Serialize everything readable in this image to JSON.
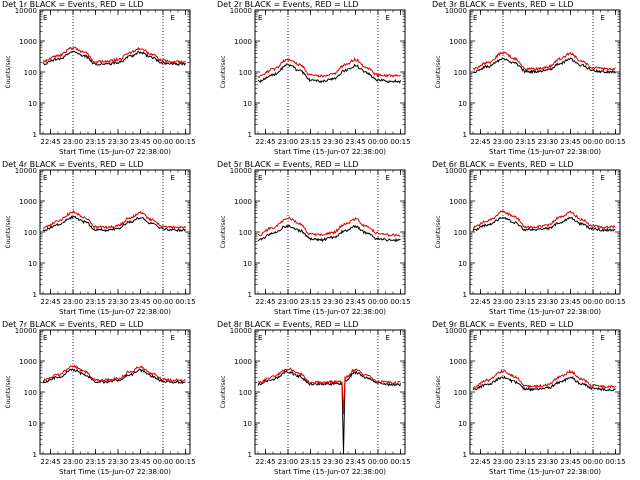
{
  "figure": {
    "x_ticks": [
      "22:45",
      "23:00",
      "23:15",
      "23:30",
      "23:45",
      "00:00",
      "00:15"
    ],
    "y_ticks": [
      "10000",
      "1000",
      "100",
      "10",
      "1"
    ],
    "ylabel": "Counts/sec",
    "xlabel": "Start Time (15-Jun-07 22:38:00)",
    "marker": "E"
  },
  "colors": {
    "events": "#000000",
    "lld": "#dd0000"
  },
  "chart_data": [
    {
      "type": "line",
      "title": "Det 1r BLACK = Events, RED = LLD",
      "xlabel": "Start Time (15-Jun-07 22:38:00)",
      "ylabel": "Counts/sec",
      "yscale": "log",
      "ylim": [
        1,
        10000
      ],
      "xlim": [
        "22:38",
        "00:18"
      ],
      "grid": false,
      "marker": "E",
      "series": [
        {
          "name": "Events",
          "x": [
            "22:40",
            "22:50",
            "23:00",
            "23:08",
            "23:15",
            "23:22",
            "23:30",
            "23:38",
            "23:45",
            "23:52",
            "00:00",
            "00:08",
            "00:15"
          ],
          "values": [
            180,
            260,
            450,
            320,
            180,
            175,
            200,
            320,
            440,
            300,
            190,
            180,
            180
          ]
        },
        {
          "name": "LLD",
          "x": [
            "22:40",
            "22:50",
            "23:00",
            "23:08",
            "23:15",
            "23:22",
            "23:30",
            "23:38",
            "23:45",
            "23:52",
            "00:00",
            "00:08",
            "00:15"
          ],
          "values": [
            220,
            330,
            600,
            420,
            220,
            215,
            250,
            420,
            580,
            380,
            230,
            215,
            210
          ]
        }
      ]
    },
    {
      "type": "line",
      "title": "Det 2r BLACK = Events, RED = LLD",
      "xlabel": "Start Time (15-Jun-07 22:38:00)",
      "ylabel": "Counts/sec",
      "yscale": "log",
      "ylim": [
        1,
        10000
      ],
      "xlim": [
        "22:38",
        "00:18"
      ],
      "grid": false,
      "marker": "E",
      "series": [
        {
          "name": "Events",
          "x": [
            "22:40",
            "22:50",
            "23:00",
            "23:08",
            "23:15",
            "23:22",
            "23:30",
            "23:38",
            "23:45",
            "23:52",
            "00:00",
            "00:08",
            "00:15"
          ],
          "values": [
            50,
            80,
            170,
            110,
            55,
            50,
            60,
            110,
            160,
            95,
            55,
            50,
            50
          ]
        },
        {
          "name": "LLD",
          "x": [
            "22:40",
            "22:50",
            "23:00",
            "23:08",
            "23:15",
            "23:22",
            "23:30",
            "23:38",
            "23:45",
            "23:52",
            "00:00",
            "00:08",
            "00:15"
          ],
          "values": [
            70,
            120,
            260,
            170,
            80,
            75,
            85,
            170,
            250,
            140,
            80,
            75,
            75
          ]
        }
      ]
    },
    {
      "type": "line",
      "title": "Det 3r BLACK = Events, RED = LLD",
      "xlabel": "Start Time (15-Jun-07 22:38:00)",
      "ylabel": "Counts/sec",
      "yscale": "log",
      "ylim": [
        1,
        10000
      ],
      "xlim": [
        "22:38",
        "00:18"
      ],
      "grid": false,
      "marker": "E",
      "series": [
        {
          "name": "Events",
          "x": [
            "22:40",
            "22:50",
            "23:00",
            "23:08",
            "23:15",
            "23:22",
            "23:30",
            "23:38",
            "23:45",
            "23:52",
            "00:00",
            "00:08",
            "00:15"
          ],
          "values": [
            100,
            150,
            270,
            190,
            105,
            100,
            115,
            190,
            260,
            170,
            110,
            100,
            100
          ]
        },
        {
          "name": "LLD",
          "x": [
            "22:40",
            "22:50",
            "23:00",
            "23:08",
            "23:15",
            "23:22",
            "23:30",
            "23:38",
            "23:45",
            "23:52",
            "00:00",
            "00:08",
            "00:15"
          ],
          "values": [
            125,
            200,
            420,
            270,
            130,
            125,
            145,
            270,
            400,
            230,
            140,
            125,
            125
          ]
        }
      ]
    },
    {
      "type": "line",
      "title": "Det 4r BLACK = Events, RED = LLD",
      "xlabel": "Start Time (15-Jun-07 22:38:00)",
      "ylabel": "Counts/sec",
      "yscale": "log",
      "ylim": [
        1,
        10000
      ],
      "xlim": [
        "22:38",
        "00:18"
      ],
      "grid": false,
      "marker": "E",
      "series": [
        {
          "name": "Events",
          "x": [
            "22:40",
            "22:50",
            "23:00",
            "23:08",
            "23:15",
            "23:22",
            "23:30",
            "23:38",
            "23:45",
            "23:52",
            "00:00",
            "00:08",
            "00:15"
          ],
          "values": [
            110,
            170,
            300,
            210,
            120,
            115,
            130,
            210,
            290,
            190,
            125,
            115,
            115
          ]
        },
        {
          "name": "LLD",
          "x": [
            "22:40",
            "22:50",
            "23:00",
            "23:08",
            "23:15",
            "23:22",
            "23:30",
            "23:38",
            "23:45",
            "23:52",
            "00:00",
            "00:08",
            "00:15"
          ],
          "values": [
            135,
            220,
            440,
            290,
            145,
            140,
            160,
            290,
            420,
            250,
            150,
            140,
            140
          ]
        }
      ]
    },
    {
      "type": "line",
      "title": "Det 5r BLACK = Events, RED = LLD",
      "xlabel": "Start Time (15-Jun-07 22:38:00)",
      "ylabel": "Counts/sec",
      "yscale": "log",
      "ylim": [
        1,
        10000
      ],
      "xlim": [
        "22:38",
        "00:18"
      ],
      "grid": false,
      "marker": "E",
      "series": [
        {
          "name": "Events",
          "x": [
            "22:40",
            "22:50",
            "23:00",
            "23:08",
            "23:15",
            "23:22",
            "23:30",
            "23:38",
            "23:45",
            "23:52",
            "00:00",
            "00:08",
            "00:15"
          ],
          "values": [
            55,
            90,
            160,
            110,
            60,
            55,
            65,
            110,
            150,
            95,
            60,
            55,
            55
          ]
        },
        {
          "name": "LLD",
          "x": [
            "22:40",
            "22:50",
            "23:00",
            "23:08",
            "23:15",
            "23:22",
            "23:30",
            "23:38",
            "23:45",
            "23:52",
            "00:00",
            "00:08",
            "00:15"
          ],
          "values": [
            80,
            140,
            280,
            180,
            85,
            80,
            95,
            180,
            260,
            150,
            90,
            80,
            80
          ]
        }
      ]
    },
    {
      "type": "line",
      "title": "Det 6r BLACK = Events, RED = LLD",
      "xlabel": "Start Time (15-Jun-07 22:38:00)",
      "ylabel": "Counts/sec",
      "yscale": "log",
      "ylim": [
        1,
        10000
      ],
      "xlim": [
        "22:38",
        "00:18"
      ],
      "grid": false,
      "marker": "E",
      "series": [
        {
          "name": "Events",
          "x": [
            "22:40",
            "22:50",
            "23:00",
            "23:08",
            "23:15",
            "23:22",
            "23:30",
            "23:38",
            "23:45",
            "23:52",
            "00:00",
            "00:08",
            "00:15"
          ],
          "values": [
            115,
            170,
            290,
            200,
            120,
            115,
            130,
            200,
            280,
            185,
            125,
            115,
            115
          ]
        },
        {
          "name": "LLD",
          "x": [
            "22:40",
            "22:50",
            "23:00",
            "23:08",
            "23:15",
            "23:22",
            "23:30",
            "23:38",
            "23:45",
            "23:52",
            "00:00",
            "00:08",
            "00:15"
          ],
          "values": [
            140,
            230,
            450,
            300,
            150,
            145,
            165,
            300,
            430,
            260,
            155,
            145,
            145
          ]
        }
      ]
    },
    {
      "type": "line",
      "title": "Det 7r BLACK = Events, RED = LLD",
      "xlabel": "Start Time (15-Jun-07 22:38:00)",
      "ylabel": "Counts/sec",
      "yscale": "log",
      "ylim": [
        1,
        10000
      ],
      "xlim": [
        "22:38",
        "00:18"
      ],
      "grid": false,
      "marker": "E",
      "series": [
        {
          "name": "Events",
          "x": [
            "22:40",
            "22:50",
            "23:00",
            "23:08",
            "23:15",
            "23:22",
            "23:30",
            "23:38",
            "23:45",
            "23:52",
            "00:00",
            "00:08",
            "00:15"
          ],
          "values": [
            210,
            300,
            520,
            360,
            215,
            210,
            235,
            360,
            500,
            330,
            225,
            210,
            210
          ]
        },
        {
          "name": "LLD",
          "x": [
            "22:40",
            "22:50",
            "23:00",
            "23:08",
            "23:15",
            "23:22",
            "23:30",
            "23:38",
            "23:45",
            "23:52",
            "00:00",
            "00:08",
            "00:15"
          ],
          "values": [
            240,
            360,
            680,
            450,
            245,
            240,
            270,
            450,
            650,
            400,
            255,
            240,
            240
          ]
        }
      ]
    },
    {
      "type": "line",
      "title": "Det 8r BLACK = Events, RED = LLD",
      "xlabel": "Start Time (15-Jun-07 22:38:00)",
      "ylabel": "Counts/sec",
      "yscale": "log",
      "ylim": [
        1,
        10000
      ],
      "xlim": [
        "22:38",
        "00:18"
      ],
      "grid": false,
      "marker": "E",
      "series": [
        {
          "name": "Events",
          "x": [
            "22:40",
            "22:50",
            "23:00",
            "23:08",
            "23:15",
            "23:22",
            "23:30",
            "23:36",
            "23:37",
            "23:38",
            "23:45",
            "23:52",
            "00:00",
            "00:08",
            "00:15"
          ],
          "values": [
            175,
            260,
            450,
            310,
            180,
            175,
            185,
            185,
            1,
            240,
            430,
            290,
            190,
            175,
            175
          ]
        },
        {
          "name": "LLD",
          "x": [
            "22:40",
            "22:50",
            "23:00",
            "23:08",
            "23:15",
            "23:22",
            "23:30",
            "23:36",
            "23:37",
            "23:38",
            "23:45",
            "23:52",
            "00:00",
            "00:08",
            "00:15"
          ],
          "values": [
            200,
            310,
            560,
            380,
            205,
            200,
            210,
            210,
            20,
            290,
            530,
            350,
            215,
            200,
            200
          ]
        }
      ]
    },
    {
      "type": "line",
      "title": "Det 9r BLACK = Events, RED = LLD",
      "xlabel": "Start Time (15-Jun-07 22:38:00)",
      "ylabel": "Counts/sec",
      "yscale": "log",
      "ylim": [
        1,
        10000
      ],
      "xlim": [
        "22:38",
        "00:18"
      ],
      "grid": false,
      "marker": "E",
      "series": [
        {
          "name": "Events",
          "x": [
            "22:40",
            "22:50",
            "23:00",
            "23:08",
            "23:15",
            "23:22",
            "23:30",
            "23:38",
            "23:45",
            "23:52",
            "00:00",
            "00:08",
            "00:15"
          ],
          "values": [
            120,
            180,
            300,
            210,
            125,
            120,
            135,
            210,
            290,
            190,
            130,
            120,
            120
          ]
        },
        {
          "name": "LLD",
          "x": [
            "22:40",
            "22:50",
            "23:00",
            "23:08",
            "23:15",
            "23:22",
            "23:30",
            "23:38",
            "23:45",
            "23:52",
            "00:00",
            "00:08",
            "00:15"
          ],
          "values": [
            145,
            240,
            470,
            310,
            155,
            150,
            170,
            310,
            450,
            270,
            160,
            150,
            150
          ]
        }
      ]
    }
  ]
}
